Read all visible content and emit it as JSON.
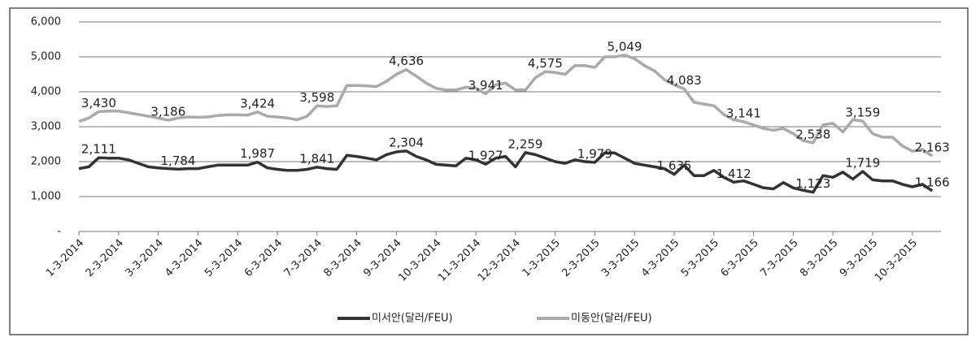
{
  "chart_data": {
    "type": "line",
    "categories": [
      "1-3-2014",
      null,
      null,
      null,
      "2-3-2014",
      null,
      null,
      null,
      "3-3-2014",
      null,
      null,
      null,
      "4-3-2014",
      null,
      null,
      null,
      "5-3-2014",
      null,
      null,
      null,
      "6-3-2014",
      null,
      null,
      null,
      "7-3-2014",
      null,
      null,
      null,
      "8-3-2014",
      null,
      null,
      null,
      "9-3-2014",
      null,
      null,
      null,
      "10-3-2014",
      null,
      null,
      null,
      "11-3-2014",
      null,
      null,
      null,
      "12-3-2014",
      null,
      null,
      null,
      "1-3-2015",
      null,
      null,
      null,
      "2-3-2015",
      null,
      null,
      null,
      "3-3-2015",
      null,
      null,
      null,
      "4-3-2015",
      null,
      null,
      null,
      "5-3-2015",
      null,
      null,
      null,
      "6-3-2015",
      null,
      null,
      null,
      "7-3-2015",
      null,
      null,
      null,
      "8-3-2015",
      null,
      null,
      null,
      "9-3-2015",
      null,
      null,
      null,
      "10-3-2015",
      null,
      null
    ],
    "series": [
      {
        "name": "미서안(달러/FEU)",
        "color": "#333333",
        "values": [
          1800,
          1850,
          2111,
          2100,
          2100,
          2050,
          1950,
          1850,
          1820,
          1800,
          1784,
          1800,
          1800,
          1850,
          1900,
          1900,
          1900,
          1900,
          1987,
          1820,
          1780,
          1750,
          1750,
          1780,
          1841,
          1800,
          1780,
          2180,
          2150,
          2100,
          2050,
          2200,
          2280,
          2304,
          2150,
          2050,
          1920,
          1900,
          1880,
          2100,
          2050,
          1927,
          2100,
          2150,
          1850,
          2259,
          2200,
          2100,
          2000,
          1950,
          2050,
          2000,
          1979,
          2250,
          2250,
          2100,
          1950,
          1900,
          1850,
          1800,
          1635,
          1900,
          1600,
          1600,
          1750,
          1550,
          1412,
          1450,
          1350,
          1250,
          1220,
          1400,
          1250,
          1180,
          1123,
          1600,
          1550,
          1700,
          1500,
          1719,
          1480,
          1450,
          1450,
          1350,
          1280,
          1350,
          1166
        ],
        "value_labels": [
          null,
          null,
          "2,111",
          null,
          null,
          null,
          null,
          null,
          null,
          null,
          "1,784",
          null,
          null,
          null,
          null,
          null,
          null,
          null,
          "1,987",
          null,
          null,
          null,
          null,
          null,
          "1,841",
          null,
          null,
          null,
          null,
          null,
          null,
          null,
          null,
          "2,304",
          null,
          null,
          null,
          null,
          null,
          null,
          null,
          "1,927",
          null,
          null,
          null,
          "2,259",
          null,
          null,
          null,
          null,
          null,
          null,
          "1,979",
          null,
          null,
          null,
          null,
          null,
          null,
          null,
          "1,635",
          null,
          null,
          null,
          null,
          null,
          "1,412",
          null,
          null,
          null,
          null,
          null,
          null,
          null,
          "1,123",
          null,
          null,
          null,
          null,
          "1,719",
          null,
          null,
          null,
          null,
          null,
          null,
          "1,166"
        ]
      },
      {
        "name": "미동안(달러/FEU)",
        "color": "#aaaaaa",
        "values": [
          3150,
          3250,
          3430,
          3450,
          3450,
          3400,
          3350,
          3300,
          3250,
          3186,
          3250,
          3280,
          3270,
          3280,
          3320,
          3340,
          3340,
          3330,
          3424,
          3300,
          3280,
          3250,
          3200,
          3300,
          3598,
          3580,
          3600,
          4180,
          4180,
          4170,
          4150,
          4300,
          4500,
          4636,
          4450,
          4250,
          4100,
          4050,
          4050,
          4130,
          4100,
          3941,
          4200,
          4250,
          4050,
          4050,
          4400,
          4575,
          4550,
          4500,
          4750,
          4750,
          4700,
          5000,
          5000,
          5049,
          4950,
          4750,
          4600,
          4350,
          4200,
          4083,
          3700,
          3650,
          3600,
          3350,
          3200,
          3141,
          3050,
          2950,
          2900,
          2950,
          2800,
          2600,
          2538,
          3050,
          3100,
          2850,
          3200,
          3159,
          2800,
          2700,
          2700,
          2450,
          2300,
          2350,
          2163
        ],
        "value_labels": [
          null,
          null,
          "3,430",
          null,
          null,
          null,
          null,
          null,
          null,
          "3,186",
          null,
          null,
          null,
          null,
          null,
          null,
          null,
          null,
          "3,424",
          null,
          null,
          null,
          null,
          null,
          "3,598",
          null,
          null,
          null,
          null,
          null,
          null,
          null,
          null,
          "4,636",
          null,
          null,
          null,
          null,
          null,
          null,
          null,
          "3,941",
          null,
          null,
          null,
          null,
          null,
          "4,575",
          null,
          null,
          null,
          null,
          null,
          null,
          null,
          "5,049",
          null,
          null,
          null,
          null,
          null,
          "4,083",
          null,
          null,
          null,
          null,
          null,
          "3,141",
          null,
          null,
          null,
          null,
          null,
          null,
          "2,538",
          null,
          null,
          null,
          null,
          "3,159",
          null,
          null,
          null,
          null,
          null,
          null,
          "2,163"
        ]
      }
    ],
    "ylim": [
      0,
      6000
    ],
    "yticks": [
      {
        "value": 0,
        "label": "-"
      },
      {
        "value": 1000,
        "label": "1,000"
      },
      {
        "value": 2000,
        "label": "2,000"
      },
      {
        "value": 3000,
        "label": "3,000"
      },
      {
        "value": 4000,
        "label": "4,000"
      },
      {
        "value": 5000,
        "label": "5,000"
      },
      {
        "value": 6000,
        "label": "6,000"
      }
    ],
    "grid": true
  }
}
